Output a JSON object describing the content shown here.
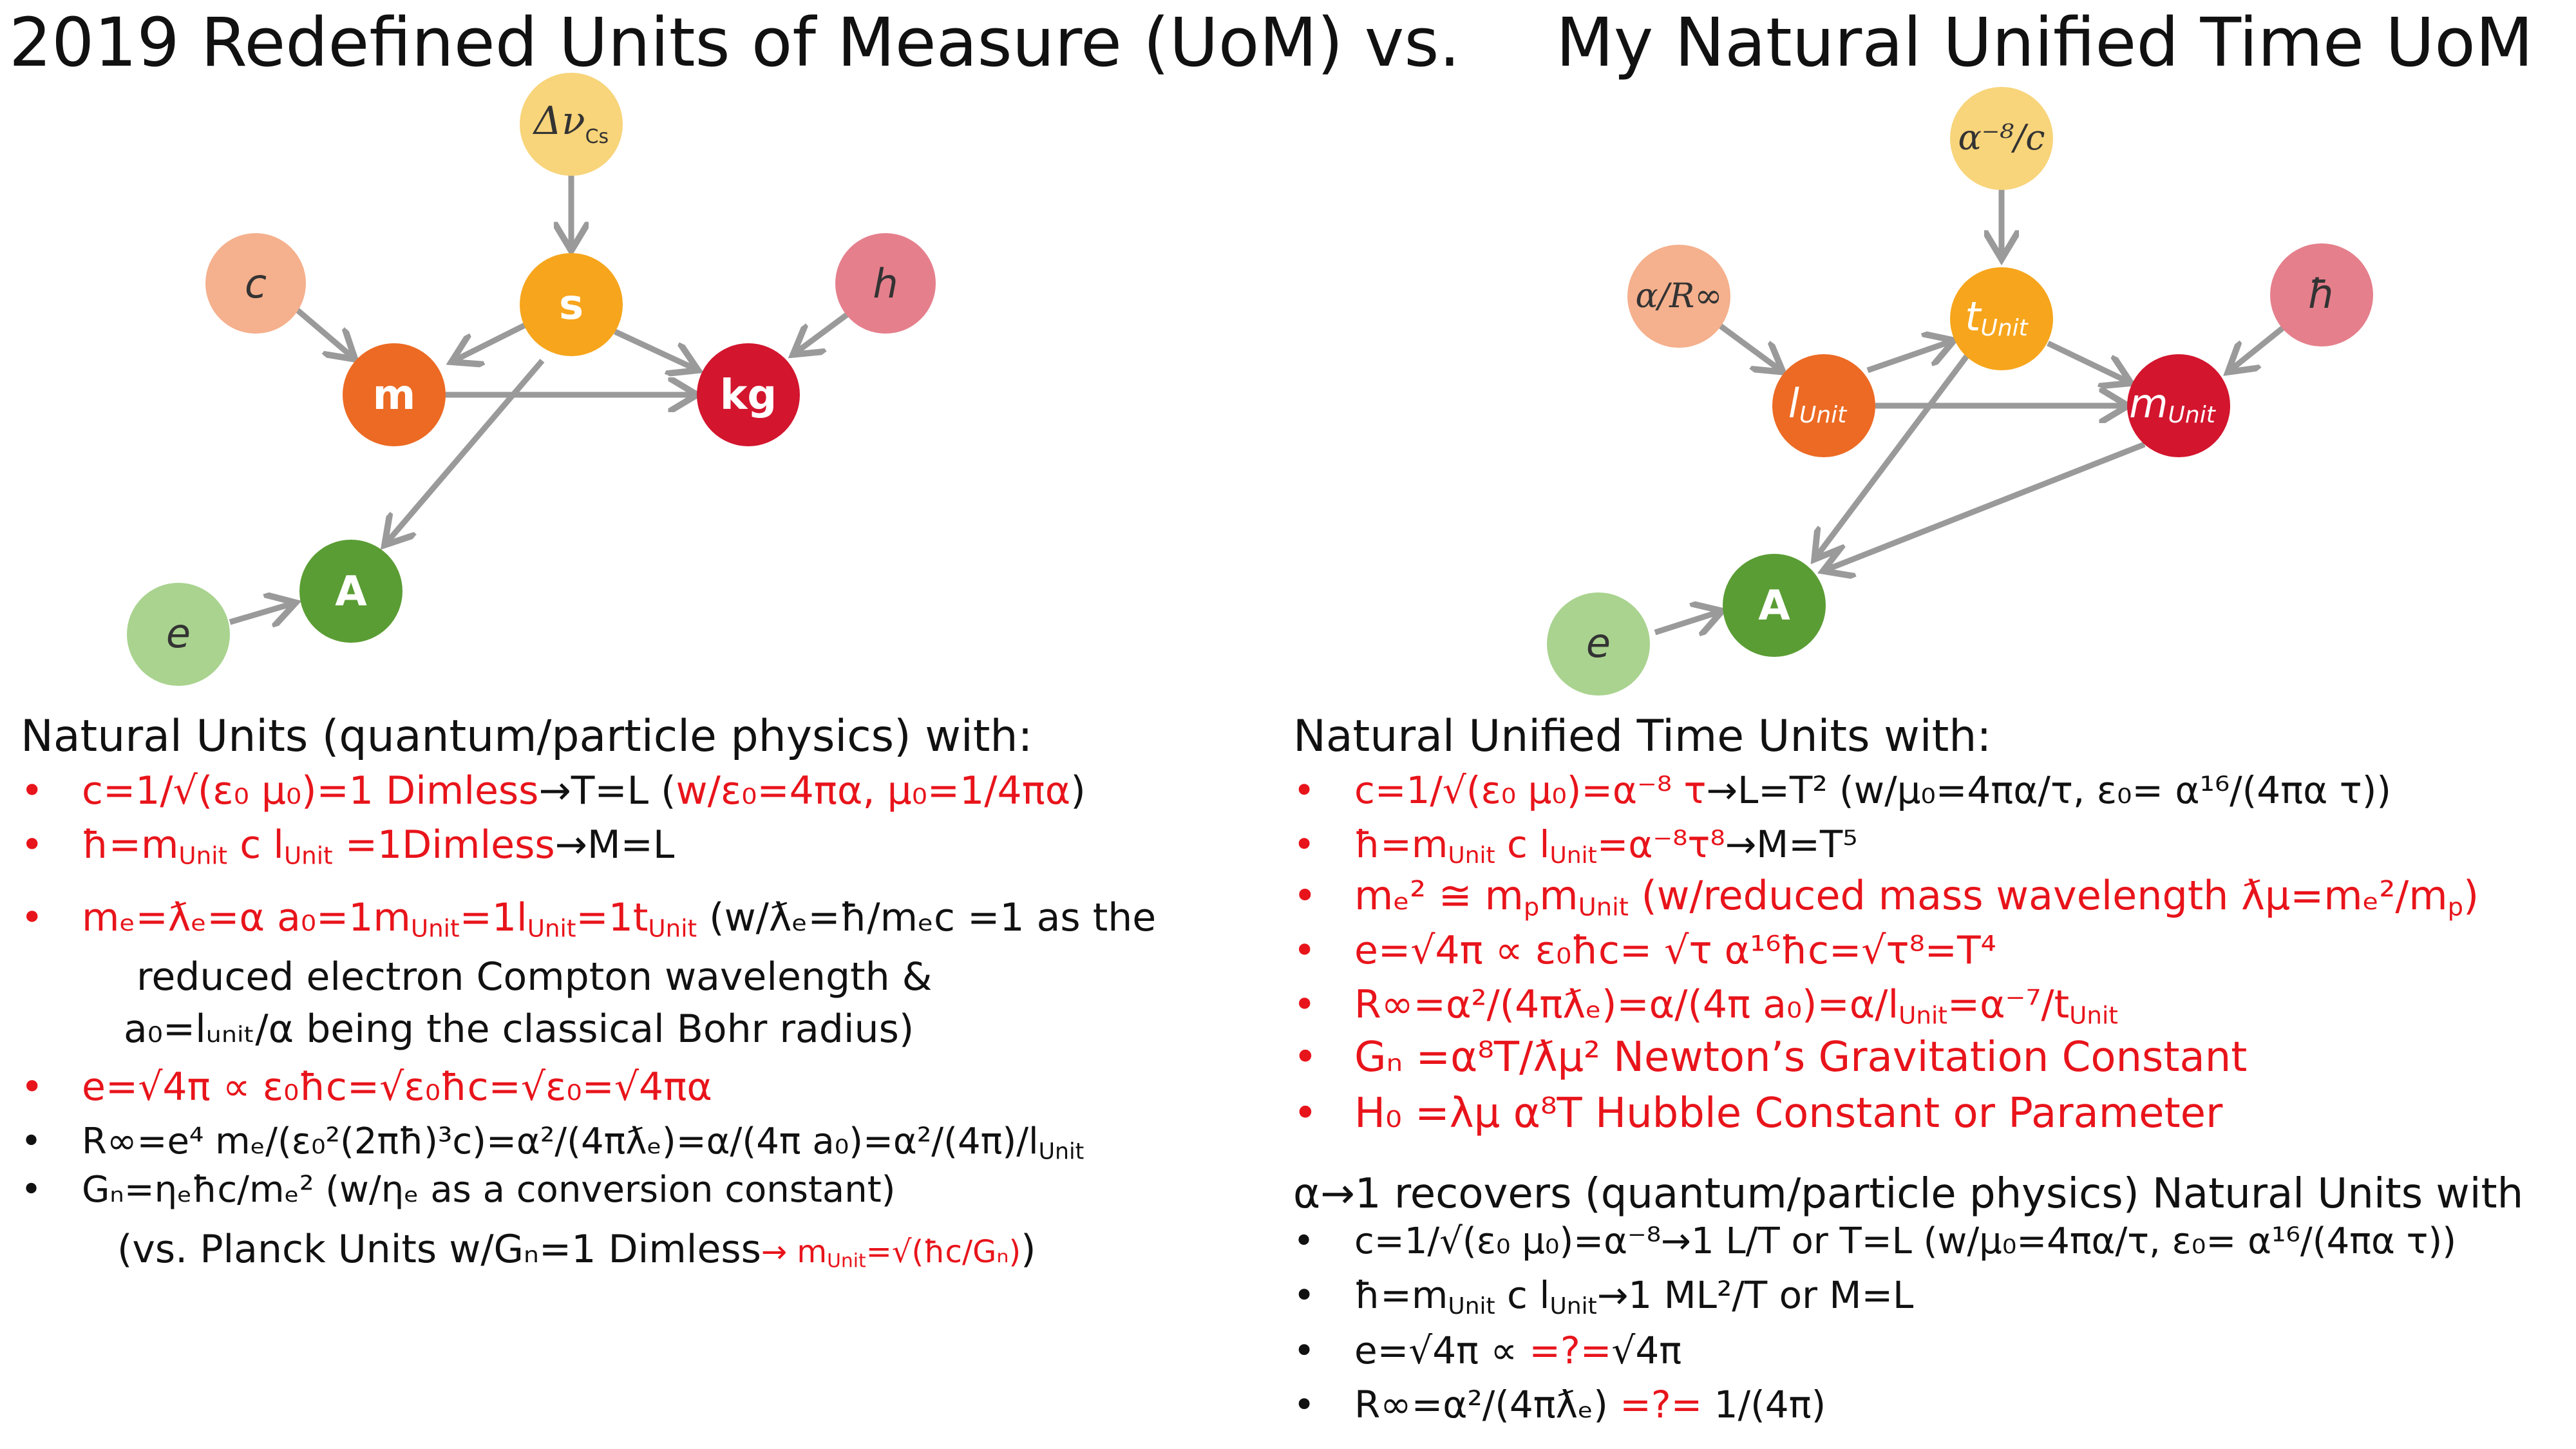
{
  "titles": {
    "left": "2019 Redefined Units of Measure (UoM) vs.",
    "right": "My Natural Unified Time UoM"
  },
  "colors": {
    "yellow": "#f8d47a",
    "salmon": "#f5b08d",
    "amber": "#f7a51c",
    "pink": "#e57f8c",
    "orange": "#ec6a23",
    "crimson": "#d3152e",
    "green": "#5a9d34",
    "lightgreen": "#a9d38f",
    "arrow": "#9a9a9a",
    "red_text": "#e8141b"
  },
  "diagram_left": {
    "nodes": {
      "dnu": {
        "label": "Δν",
        "sub": "Cs"
      },
      "c": {
        "label": "c"
      },
      "s": {
        "label": "s"
      },
      "h": {
        "label": "h"
      },
      "m": {
        "label": "m"
      },
      "kg": {
        "label": "kg"
      },
      "e": {
        "label": "e"
      },
      "A": {
        "label": "A"
      }
    }
  },
  "diagram_right": {
    "nodes": {
      "top": {
        "label": "α⁻⁸/c"
      },
      "aR": {
        "label": "α/R∞"
      },
      "t": {
        "label": "t",
        "sub": "Unit"
      },
      "hbar": {
        "label": "ħ"
      },
      "l": {
        "label": "l",
        "sub": "Unit"
      },
      "mU": {
        "label": "m",
        "sub": "Unit"
      },
      "e": {
        "label": "e"
      },
      "A": {
        "label": "A"
      }
    }
  },
  "left_text": {
    "heading": "Natural Units (quantum/particle physics) with:",
    "b1_red": "c=1/√(ε₀ μ₀)=1 Dimless",
    "b1_black": "→T=L (",
    "b1_red2": "w/ε₀=4πα, μ₀=1/4πα",
    "b1_end": ")",
    "b2_red": "ħ=m",
    "b2_sub1": "Unit",
    "b2_red_b": " c l",
    "b2_sub2": "Unit",
    "b2_red_c": " =1Dimless",
    "b2_black": "→M=L",
    "b3_red": "mₑ=ƛₑ=α a₀=1m",
    "b3_sub1": "Unit",
    "b3_red_b": "=1l",
    "b3_sub2": "Unit",
    "b3_red_c": "=1t",
    "b3_sub3": "Unit",
    "b3_black": " (w/ƛₑ=ħ/mₑc =1 as the",
    "b3_cont1": "reduced electron Compton wavelength &",
    "b3_cont2": "a₀=lᵤₙᵢₜ/α being the classical Bohr radius)",
    "b4_red": "e=√4π ∝ ε₀ħc=√ε₀ħc=√ε₀=√4πα",
    "b5": "R∞=e⁴ mₑ/(ε₀²(2πħ)³c)=α²/(4πƛₑ)=α/(4π a₀)=α²/(4π)/l",
    "b5_sub": "Unit",
    "b6": "Gₙ=ηₑħc/mₑ² (w/ηₑ as a conversion constant)",
    "b6_cont_black": "(vs. Planck Units w/Gₙ=1 Dimless",
    "b6_cont_red": "→ m",
    "b6_cont_sub": "Unit",
    "b6_cont_red2": "=√(ħc/Gₙ)",
    "b6_cont_end": ")"
  },
  "right_text": {
    "heading": "Natural Unified Time Units with:",
    "r1_red": "c=1/√(ε₀ μ₀)=α⁻⁸ τ",
    "r1_black": "→L=T² (w/μ₀=4πα/τ, ε₀= α¹⁶/(4πα τ))",
    "r2_red": "ħ=m",
    "r2_sub1": "Unit",
    "r2_red_b": " c l",
    "r2_sub2": "Unit",
    "r2_red_c": "=α⁻⁸τ⁸",
    "r2_black": "→M=T⁵",
    "r3_red": "mₑ² ≅ m",
    "r3_sub1": "p",
    "r3_red_b": "m",
    "r3_sub2": "Unit",
    "r3_red_c": " (w/reduced mass wavelength ƛμ=mₑ²/m",
    "r3_sub3": "p",
    "r3_end": ")",
    "r4_red": "e=√4π ∝ ε₀ħc= √τ α¹⁶ħc=√τ⁸=T⁴",
    "r5_red": "R∞=α²/(4πƛₑ)=α/(4π a₀)=α/l",
    "r5_sub1": "Unit",
    "r5_red_b": "=α⁻⁷/t",
    "r5_sub2": "Unit",
    "r6_red": "Gₙ =α⁸T/ƛμ² Newton’s Gravitation Constant",
    "r7_red": "H₀ =λμ α⁸T Hubble Constant or Parameter",
    "heading2": "α→1 recovers (quantum/particle physics) Natural Units with",
    "s1": "c=1/√(ε₀ μ₀)=α⁻⁸→1 L/T or T=L (w/μ₀=4πα/τ, ε₀= α¹⁶/(4πα τ))",
    "s2_a": "ħ=m",
    "s2_sub1": "Unit",
    "s2_b": " c l",
    "s2_sub2": "Unit",
    "s2_c": "→1 ML²/T or M=L",
    "s3_black": "e=√4π ∝ ",
    "s3_red": "=?=",
    "s3_black2": "√4π",
    "s4_black": "R∞=α²/(4πƛₑ) ",
    "s4_red": "=?=",
    "s4_black2": " 1/(4π)"
  },
  "bullet_char": "•"
}
